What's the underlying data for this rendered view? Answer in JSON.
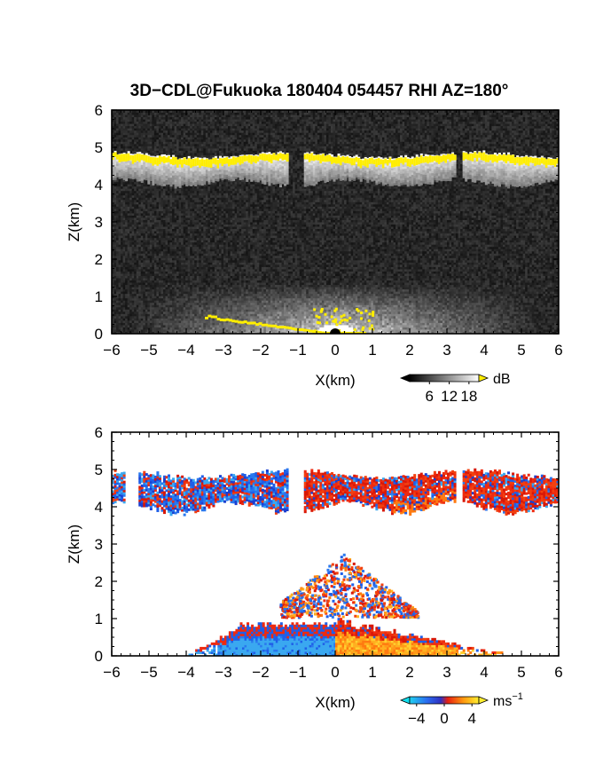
{
  "title": "3D−CDL@Fukuoka 180404 054457 RHI AZ=180°",
  "colors": {
    "background_panel1": "#111111",
    "highlight_yellow": "#ffee00",
    "neg_velocity_blue": "#1e6fe8",
    "pos_velocity_red": "#ee2a10",
    "pos_velocity_orange": "#ffaa10"
  },
  "chart_data": [
    {
      "type": "heatmap",
      "quantity": "echo intensity",
      "xlabel": "X(km)",
      "ylabel": "Z(km)",
      "xlim": [
        -6,
        6
      ],
      "ylim": [
        0,
        6
      ],
      "x_ticks": [
        "−6",
        "−5",
        "−4",
        "−3",
        "−2",
        "−1",
        "0",
        "1",
        "2",
        "3",
        "4",
        "5",
        "6"
      ],
      "y_ticks": [
        "0",
        "1",
        "2",
        "3",
        "4",
        "5",
        "6"
      ],
      "colorbar": {
        "unit": "dB",
        "ticks": [
          "6",
          "12",
          "18"
        ],
        "values": [
          6,
          12,
          18
        ],
        "range": [
          0,
          21
        ],
        "colormap": "black-to-white, yellow above max"
      },
      "features": {
        "cloud_layer": {
          "x_range": [
            -6,
            6
          ],
          "z_base_km": 4.0,
          "z_top_km": 4.8,
          "gaps_x_km": [
            [
              -1.3,
              -0.9
            ],
            [
              3.2,
              3.4
            ]
          ]
        },
        "near_ground_cone": {
          "x_range": [
            -6,
            6
          ],
          "z_range": [
            0,
            1.3
          ]
        }
      }
    },
    {
      "type": "heatmap",
      "quantity": "Doppler velocity",
      "xlabel": "X(km)",
      "ylabel": "Z(km)",
      "xlim": [
        -6,
        6
      ],
      "ylim": [
        0,
        6
      ],
      "x_ticks": [
        "−6",
        "−5",
        "−4",
        "−3",
        "−2",
        "−1",
        "0",
        "1",
        "2",
        "3",
        "4",
        "5",
        "6"
      ],
      "y_ticks": [
        "0",
        "1",
        "2",
        "3",
        "4",
        "5",
        "6"
      ],
      "colorbar": {
        "unit": "ms",
        "unit_exponent": "−1",
        "ticks": [
          "−4",
          "0",
          "4"
        ],
        "values": [
          -4,
          0,
          4
        ],
        "range": [
          -5,
          5
        ],
        "colormap": "cyan-blue-red-orange-yellow"
      },
      "features": {
        "cloud_layer": {
          "x_range": [
            -6,
            6
          ],
          "z_base_km": 3.9,
          "z_top_km": 4.9,
          "velocity_ms": "mixed −4 to 2"
        },
        "boundary_layer_negative": {
          "x_range": [
            -4,
            0
          ],
          "z_range": [
            0,
            1.0
          ],
          "velocity_ms": -3
        },
        "boundary_layer_positive": {
          "x_range": [
            0,
            4.5
          ],
          "z_range": [
            0,
            1.0
          ],
          "velocity_ms": 2
        },
        "scattered_plume": {
          "x_range": [
            -1.5,
            2.2
          ],
          "z_range": [
            1.0,
            2.7
          ],
          "velocity_ms": "mixed"
        }
      }
    }
  ]
}
